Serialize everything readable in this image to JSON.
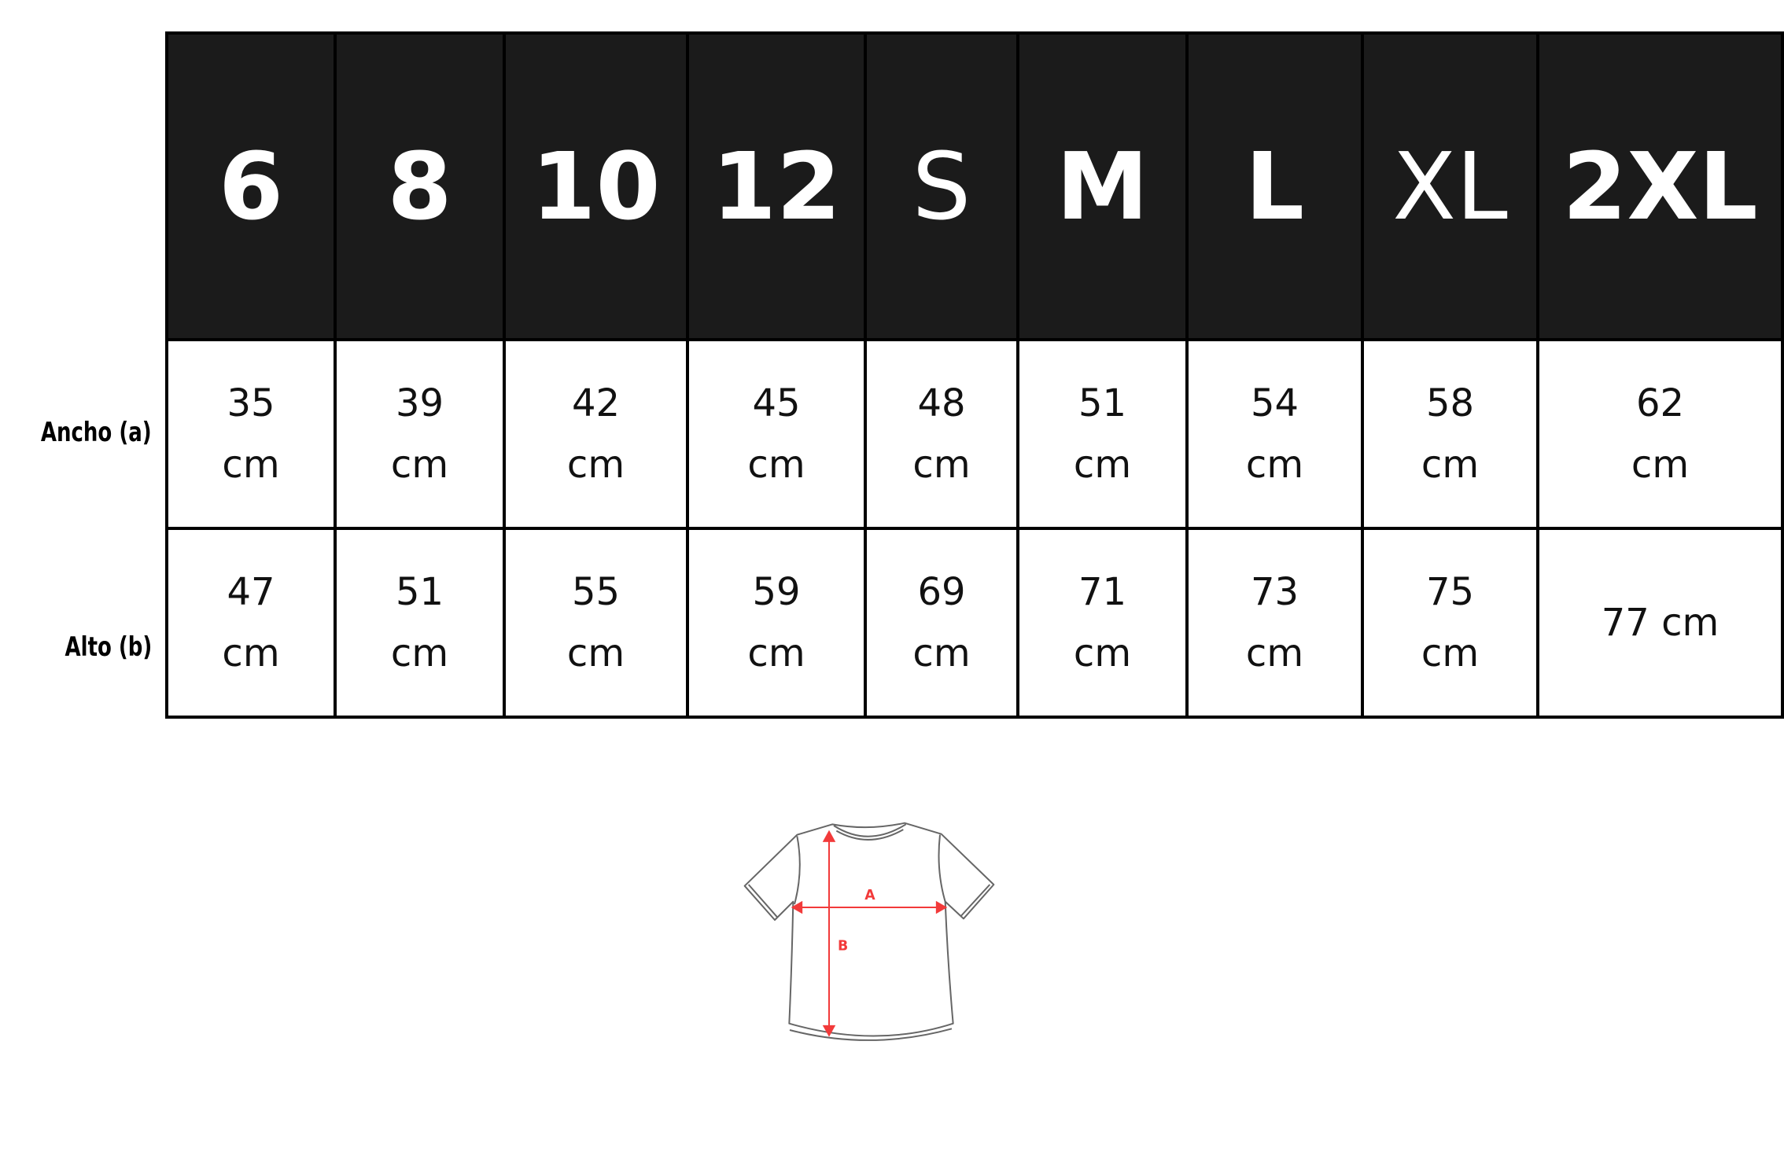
{
  "sizes": [
    "6",
    "8",
    "10",
    "12",
    "S",
    "M",
    "L",
    "XL",
    "2XL"
  ],
  "row_labels": {
    "ancho": "Ancho (a)",
    "alto": "Alto (b)"
  },
  "ancho": [
    "35 cm",
    "39 cm",
    "42 cm",
    "45 cm",
    "48 cm",
    "51 cm",
    "54 cm",
    "58 cm",
    "62 cm"
  ],
  "alto": [
    "47 cm",
    "51 cm",
    "55 cm",
    "59 cm",
    "69 cm",
    "71 cm",
    "73 cm",
    "75 cm",
    "77 cm"
  ],
  "diagram": {
    "label_a": "A",
    "label_b": "B",
    "arrow_color": "#f23a3a",
    "outline_color": "#555555"
  },
  "colors": {
    "header_bg": "#1b1b1b",
    "header_text": "#ffffff"
  }
}
